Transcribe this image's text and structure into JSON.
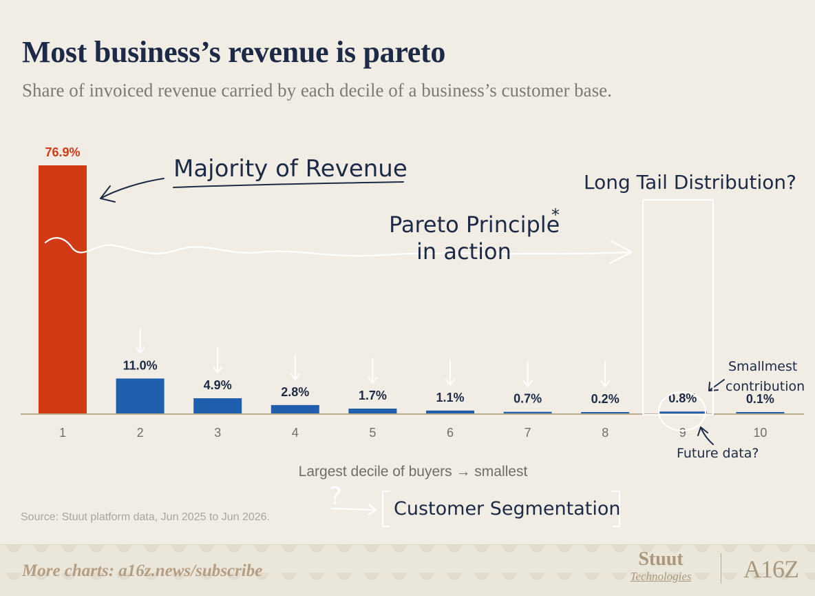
{
  "title": "Most business’s revenue is pareto",
  "subtitle": "Share of invoiced revenue carried by each decile of a business’s customer base.",
  "source": "Source: Stuut platform data, Jun 2025 to Jun 2026.",
  "footer": {
    "link": "More charts: a16z.news/subscribe",
    "logo_stuut_line1": "Stuut",
    "logo_stuut_line2": "Technologies",
    "logo_a16z": "A16Z"
  },
  "annotations": {
    "majority": "Majority of Revenue",
    "long_tail": "Long Tail Distribution?",
    "pareto_line1": "Pareto Principle",
    "pareto_star": "*",
    "pareto_line2": "in action",
    "smallest_line1": "Smallmest",
    "smallest_line2": "contribution",
    "future": "Future data?",
    "question": "?",
    "segmentation": "Customer Segmentation"
  },
  "chart_data": {
    "type": "bar",
    "categories": [
      "1",
      "2",
      "3",
      "4",
      "5",
      "6",
      "7",
      "8",
      "9",
      "10"
    ],
    "values": [
      76.9,
      11.0,
      4.9,
      2.8,
      1.7,
      1.1,
      0.7,
      0.2,
      0.8,
      0.1
    ],
    "data_labels": [
      "76.9%",
      "11.0%",
      "4.9%",
      "2.8%",
      "1.7%",
      "1.1%",
      "0.7%",
      "0.2%",
      "0.8%",
      "0.1%"
    ],
    "xlabel": "Largest decile of buyers → smallest",
    "ylabel": "",
    "ylim": [
      0,
      76.9
    ],
    "grid": false,
    "colors": {
      "highlight": "#d13a14",
      "bars": "#1f5fae",
      "labels": "#1c2a47",
      "axis": "#b9ab92",
      "ticks": "#6f6d69",
      "annotation_ink": "#1c2a47"
    }
  }
}
